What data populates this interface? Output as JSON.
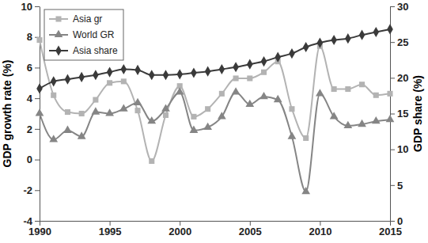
{
  "chart_data": {
    "type": "line",
    "ylabel": "GDP growth rate (%)",
    "y2label": "GDP share (%)",
    "x": [
      1990,
      1991,
      1992,
      1993,
      1994,
      1995,
      1996,
      1997,
      1998,
      1999,
      2000,
      2001,
      2002,
      2003,
      2004,
      2005,
      2006,
      2007,
      2008,
      2009,
      2010,
      2011,
      2012,
      2013,
      2014,
      2015
    ],
    "xlim": [
      1990,
      2015
    ],
    "xticks": [
      1990,
      1995,
      2000,
      2005,
      2010,
      2015
    ],
    "ylim": [
      -4,
      10
    ],
    "yticks": [
      -4,
      -2,
      0,
      2,
      4,
      6,
      8,
      10
    ],
    "y2lim": [
      0,
      30
    ],
    "y2ticks": [
      0,
      5,
      10,
      15,
      20,
      25,
      30
    ],
    "legend": "upper left",
    "grid": false,
    "series": [
      {
        "name": "Asia gr",
        "color": "#b3b3b3",
        "marker": "square",
        "line_style": "solid",
        "values": [
          7.8,
          4.2,
          3.1,
          3.0,
          3.9,
          5.0,
          5.1,
          3.2,
          -0.1,
          2.9,
          4.8,
          2.8,
          3.3,
          4.3,
          5.3,
          5.3,
          5.7,
          6.4,
          3.3,
          1.4,
          7.4,
          4.6,
          4.6,
          4.9,
          4.2,
          4.3
        ]
      },
      {
        "name": "World GR",
        "color": "#858585",
        "marker": "triangle",
        "line_style": "solid",
        "values": [
          3.0,
          1.3,
          1.9,
          1.5,
          3.1,
          3.0,
          3.3,
          3.7,
          2.5,
          3.3,
          4.4,
          1.9,
          2.1,
          2.8,
          4.4,
          3.6,
          4.1,
          3.9,
          1.5,
          -2.1,
          4.3,
          2.8,
          2.2,
          2.3,
          2.5,
          2.6
        ]
      },
      {
        "name": "Asia share",
        "color": "#3a3a3a",
        "marker": "diamond",
        "line_style": "solid",
        "axis": "y2",
        "values": [
          18.5,
          19.5,
          19.8,
          20.1,
          20.4,
          20.8,
          21.2,
          21.1,
          20.4,
          20.4,
          20.5,
          20.7,
          20.9,
          21.2,
          21.5,
          21.9,
          22.3,
          22.9,
          23.4,
          24.3,
          24.9,
          25.3,
          25.5,
          26.0,
          26.4,
          26.8
        ]
      }
    ]
  }
}
